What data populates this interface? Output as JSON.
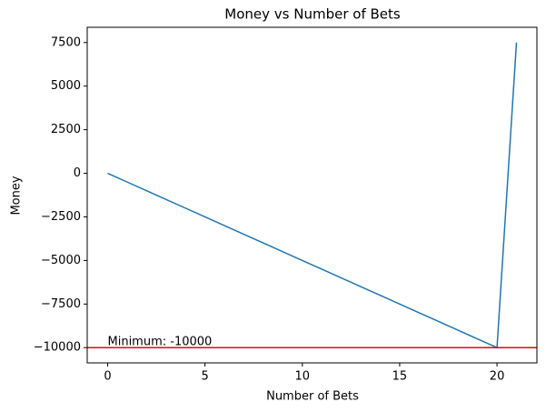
{
  "chart_data": {
    "type": "line",
    "title": "Money vs Number of Bets",
    "x_label": "Number of Bets",
    "y_label": "Money",
    "x": [
      0,
      1,
      2,
      3,
      4,
      5,
      6,
      7,
      8,
      9,
      10,
      11,
      12,
      13,
      14,
      15,
      16,
      17,
      18,
      19,
      20,
      21
    ],
    "series": [
      {
        "color": "#1f77b4",
        "values": [
          0,
          -500,
          -1000,
          -1500,
          -2000,
          -2500,
          -3000,
          -3500,
          -4000,
          -4500,
          -5000,
          -5500,
          -6000,
          -6500,
          -7000,
          -7500,
          -8000,
          -8500,
          -9000,
          -9500,
          -10000,
          7500
        ]
      }
    ],
    "hline": {
      "value": -10000,
      "color": "#ff0000"
    },
    "annotation": {
      "text": "Minimum: -10000",
      "x": 0,
      "y": -10000
    },
    "xlim": [
      -1.05,
      22.05
    ],
    "xticks": [
      0,
      5,
      10,
      15,
      20
    ],
    "ylim": [
      -10875,
      8375
    ],
    "yticks": [
      {
        "value": -10000,
        "label": "−10000"
      },
      {
        "value": -7500,
        "label": "−7500"
      },
      {
        "value": -5000,
        "label": "−5000"
      },
      {
        "value": -2500,
        "label": "−2500"
      },
      0,
      2500,
      5000,
      7500
    ]
  }
}
